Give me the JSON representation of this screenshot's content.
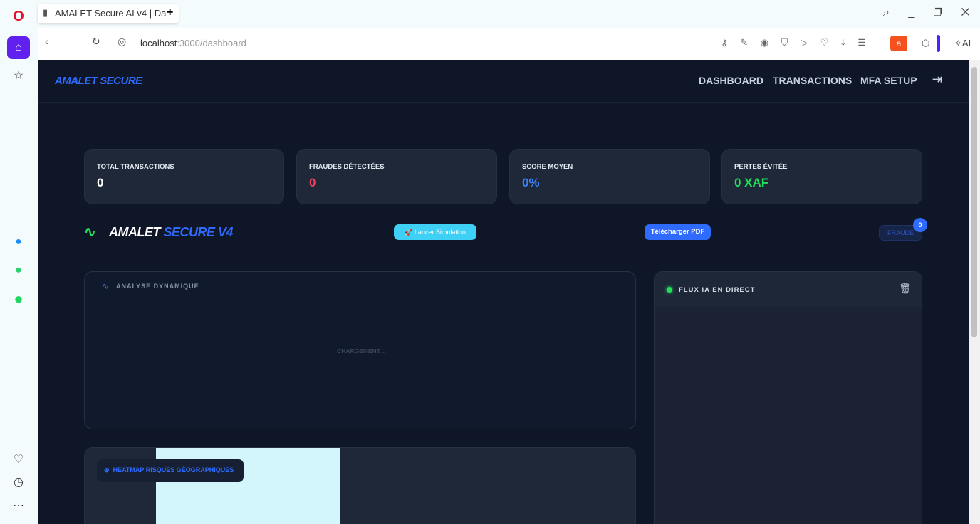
{
  "browser": {
    "tab_title": "AMALET Secure AI v4 | Da",
    "url_host": "localhost",
    "url_path": ":3000/dashboard",
    "new_tab": "+",
    "ai_label": "AI",
    "ext_badge": "a"
  },
  "nav": {
    "brand": "AMALET SECURE",
    "links": [
      "DASHBOARD",
      "TRANSACTIONS",
      "MFA SETUP"
    ]
  },
  "stats": [
    {
      "label": "TOTAL TRANSACTIONS",
      "value": "0",
      "color": "#ffffff"
    },
    {
      "label": "FRAUDES DÉTECTÉES",
      "value": "0",
      "color": "#f43f5e"
    },
    {
      "label": "SCORE MOYEN",
      "value": "0%",
      "color": "#3b82f6"
    },
    {
      "label": "PERTES ÉVITÉE",
      "value": "0 XAF",
      "color": "#22e05a"
    }
  ],
  "toolbar": {
    "brand_a": "AMALET",
    "brand_b": "SECURE V4",
    "simulate": "Lancer Simulation",
    "pdf": "Télécharger PDF",
    "fraud": "FRAUDE",
    "fraud_count": "0"
  },
  "analysis": {
    "title": "ANALYSE DYNAMIQUE",
    "loading": "CHARGEMENT..."
  },
  "feed": {
    "title": "FLUX IA EN DIRECT"
  },
  "heatmap": {
    "title": "HEATMAP RISQUES GÉOGRAPHIQUES"
  }
}
